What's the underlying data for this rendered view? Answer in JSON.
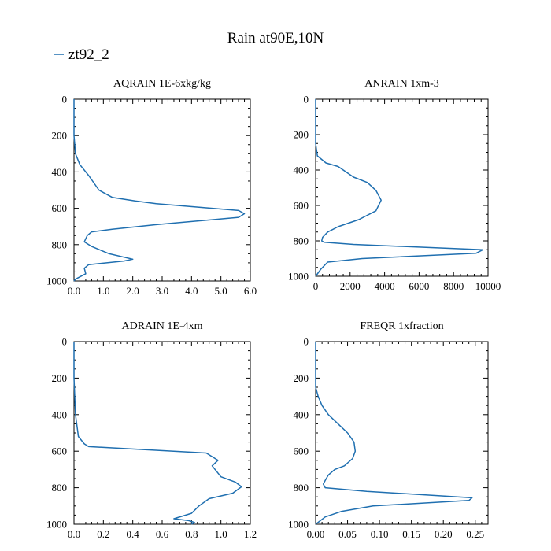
{
  "figure": {
    "title": "Rain at90E,10N",
    "legend": {
      "label": "zt92_2",
      "color": "#1f6fb0"
    }
  },
  "chart_data": [
    {
      "type": "line",
      "title": "AQRAIN  1E-6xkg/kg",
      "xlim": [
        0,
        6
      ],
      "ylim": [
        1000,
        0
      ],
      "xticks": [
        "0.0",
        "1.0",
        "2.0",
        "3.0",
        "4.0",
        "5.0",
        "6.0"
      ],
      "xtick_values": [
        0,
        1,
        2,
        3,
        4,
        5,
        6
      ],
      "yticks": [
        "0",
        "200",
        "400",
        "600",
        "800",
        "1000"
      ],
      "ytick_values": [
        0,
        200,
        400,
        600,
        800,
        1000
      ],
      "series": [
        {
          "name": "zt92_2",
          "color": "#1f6fb0",
          "x": [
            0,
            0,
            0.05,
            0.2,
            0.5,
            0.85,
            1.3,
            2.1,
            2.8,
            4.3,
            5.6,
            5.8,
            5.6,
            2.8,
            1.3,
            0.6,
            0.45,
            0.35,
            0.6,
            1.2,
            2.0,
            1.7,
            0.5,
            0.35,
            0.4,
            0.05,
            0
          ],
          "y": [
            0,
            200,
            300,
            360,
            420,
            500,
            540,
            560,
            575,
            595,
            612,
            630,
            650,
            690,
            715,
            730,
            750,
            785,
            810,
            850,
            880,
            890,
            910,
            930,
            960,
            990,
            1000
          ]
        }
      ]
    },
    {
      "type": "line",
      "title": "ANRAIN  1xm-3",
      "xlim": [
        0,
        10000
      ],
      "ylim": [
        1000,
        0
      ],
      "xticks": [
        "0",
        "2000",
        "4000",
        "6000",
        "8000",
        "10000"
      ],
      "xtick_values": [
        0,
        2000,
        4000,
        6000,
        8000,
        10000
      ],
      "yticks": [
        "0",
        "200",
        "400",
        "600",
        "800",
        "1000"
      ],
      "ytick_values": [
        0,
        200,
        400,
        600,
        800,
        1000
      ],
      "series": [
        {
          "name": "zt92_2",
          "color": "#1f6fb0",
          "x": [
            0,
            0,
            100,
            600,
            1300,
            2200,
            3000,
            3500,
            3800,
            3500,
            2500,
            1300,
            700,
            400,
            350,
            500,
            2200,
            9700,
            9300,
            2700,
            700,
            300,
            0
          ],
          "y": [
            0,
            250,
            320,
            360,
            380,
            440,
            470,
            515,
            570,
            630,
            680,
            720,
            750,
            780,
            800,
            808,
            820,
            850,
            870,
            900,
            920,
            960,
            1000
          ]
        }
      ]
    },
    {
      "type": "line",
      "title": "ADRAIN  1E-4xm",
      "xlim": [
        0,
        1.2
      ],
      "ylim": [
        1000,
        0
      ],
      "xticks": [
        "0.0",
        "0.2",
        "0.4",
        "0.6",
        "0.8",
        "1.0",
        "1.2"
      ],
      "xtick_values": [
        0,
        0.2,
        0.4,
        0.6,
        0.8,
        1.0,
        1.2
      ],
      "yticks": [
        "0",
        "200",
        "400",
        "600",
        "800",
        "1000"
      ],
      "ytick_values": [
        0,
        200,
        400,
        600,
        800,
        1000
      ],
      "series": [
        {
          "name": "zt92_2",
          "color": "#1f6fb0",
          "x": [
            0,
            0,
            0.01,
            0.03,
            0.07,
            0.1,
            0.9,
            0.98,
            0.94,
            1.0,
            1.1,
            1.14,
            1.08,
            0.92,
            0.85,
            0.8,
            0.68,
            0.78,
            0.82,
            0.8
          ],
          "y": [
            0,
            200,
            400,
            520,
            560,
            575,
            610,
            650,
            680,
            740,
            770,
            795,
            830,
            860,
            900,
            940,
            970,
            980,
            990,
            1000
          ]
        }
      ]
    },
    {
      "type": "line",
      "title": "FREQR  1xfraction",
      "xlim": [
        0,
        0.27
      ],
      "ylim": [
        1000,
        0
      ],
      "xticks": [
        "0.00",
        "0.05",
        "0.10",
        "0.15",
        "0.20",
        "0.25"
      ],
      "xtick_values": [
        0,
        0.05,
        0.1,
        0.15,
        0.2,
        0.25
      ],
      "yticks": [
        "0",
        "200",
        "400",
        "600",
        "800",
        "1000"
      ],
      "ytick_values": [
        0,
        200,
        400,
        600,
        800,
        1000
      ],
      "series": [
        {
          "name": "zt92_2",
          "color": "#1f6fb0",
          "x": [
            0,
            0,
            0.004,
            0.01,
            0.02,
            0.035,
            0.05,
            0.06,
            0.062,
            0.058,
            0.045,
            0.03,
            0.02,
            0.015,
            0.012,
            0.015,
            0.08,
            0.245,
            0.24,
            0.09,
            0.04,
            0.015,
            0
          ],
          "y": [
            0,
            250,
            300,
            350,
            400,
            450,
            500,
            550,
            600,
            640,
            680,
            700,
            730,
            760,
            780,
            800,
            820,
            855,
            870,
            900,
            930,
            960,
            1000
          ]
        }
      ]
    }
  ]
}
